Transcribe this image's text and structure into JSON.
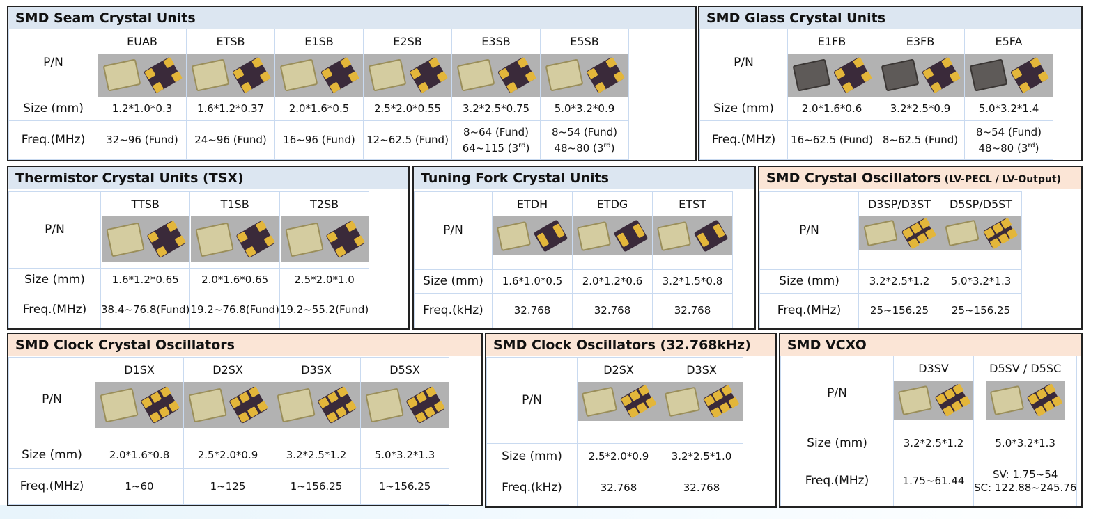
{
  "labels": {
    "pn": "P/N",
    "size": "Size (mm)",
    "freq_mhz": "Freq.(MHz)",
    "freq_khz": "Freq.(kHz)"
  },
  "seam": {
    "title": "SMD Seam Crystal Units",
    "cols": [
      {
        "pn": "EUAB",
        "size": "1.2*1.0*0.3",
        "freq": "32~96 (Fund)"
      },
      {
        "pn": "ETSB",
        "size": "1.6*1.2*0.37",
        "freq": "24~96 (Fund)"
      },
      {
        "pn": "E1SB",
        "size": "2.0*1.6*0.5",
        "freq": "16~96 (Fund)"
      },
      {
        "pn": "E2SB",
        "size": "2.5*2.0*0.55",
        "freq": "12~62.5 (Fund)"
      },
      {
        "pn": "E3SB",
        "size": "3.2*2.5*0.75",
        "freq": "8~64 (Fund)",
        "freq2": "64~115 (3",
        "sup": "rd",
        ")": ")"
      },
      {
        "pn": "E5SB",
        "size": "5.0*3.2*0.9",
        "freq": "8~54 (Fund)",
        "freq2": "48~80 (3",
        "sup": "rd"
      }
    ]
  },
  "glass": {
    "title": "SMD Glass Crystal Units",
    "cols": [
      {
        "pn": "E1FB",
        "size": "2.0*1.6*0.6",
        "freq": "16~62.5 (Fund)"
      },
      {
        "pn": "E3FB",
        "size": "3.2*2.5*0.9",
        "freq": "8~62.5 (Fund)"
      },
      {
        "pn": "E5FA",
        "size": "5.0*3.2*1.4",
        "freq": "8~54 (Fund)",
        "freq2": "48~80 (3",
        "sup": "rd"
      }
    ]
  },
  "tsx": {
    "title": "Thermistor Crystal Units (TSX)",
    "cols": [
      {
        "pn": "TTSB",
        "size": "1.6*1.2*0.65",
        "freq": "38.4~76.8(Fund)"
      },
      {
        "pn": "T1SB",
        "size": "2.0*1.6*0.65",
        "freq": "19.2~76.8(Fund)"
      },
      {
        "pn": "T2SB",
        "size": "2.5*2.0*1.0",
        "freq": "19.2~55.2(Fund)"
      }
    ]
  },
  "fork": {
    "title": "Tuning Fork Crystal Units",
    "cols": [
      {
        "pn": "ETDH",
        "size": "1.6*1.0*0.5",
        "freq": "32.768"
      },
      {
        "pn": "ETDG",
        "size": "2.0*1.2*0.6",
        "freq": "32.768"
      },
      {
        "pn": "ETST",
        "size": "3.2*1.5*0.8",
        "freq": "32.768"
      }
    ]
  },
  "xo": {
    "title": "SMD Crystal Oscillators",
    "title_sub": " (LV-PECL / LV-Output)",
    "cols": [
      {
        "pn": "D3SP/D3ST",
        "size": "3.2*2.5*1.2",
        "freq": "25~156.25"
      },
      {
        "pn": "D5SP/D5ST",
        "size": "5.0*3.2*1.3",
        "freq": "25~156.25"
      }
    ]
  },
  "clk": {
    "title": "SMD Clock Crystal Oscillators",
    "cols": [
      {
        "pn": "D1SX",
        "size": "2.0*1.6*0.8",
        "freq": "1~60"
      },
      {
        "pn": "D2SX",
        "size": "2.5*2.0*0.9",
        "freq": "1~125"
      },
      {
        "pn": "D3SX",
        "size": "3.2*2.5*1.2",
        "freq": "1~156.25"
      },
      {
        "pn": "D5SX",
        "size": "5.0*3.2*1.3",
        "freq": "1~156.25"
      }
    ]
  },
  "clk32": {
    "title": "SMD Clock Oscillators (32.768kHz)",
    "cols": [
      {
        "pn": "D2SX",
        "size": "2.5*2.0*0.9",
        "freq": "32.768"
      },
      {
        "pn": "D3SX",
        "size": "3.2*2.5*1.0",
        "freq": "32.768"
      }
    ]
  },
  "vcxo": {
    "title": "SMD VCXO",
    "cols": [
      {
        "pn": "D3SV",
        "size": "3.2*2.5*1.2",
        "freq": "1.75~61.44"
      },
      {
        "pn": "D5SV / D5SC",
        "size": "5.0*3.2*1.3",
        "freq": "SV: 1.75~54",
        "freq2": "SC: 122.88~245.76"
      }
    ]
  },
  "colors": {
    "blue_header": "#dce6f1",
    "peach_header": "#fbe5d6",
    "grid_line": "#c9daf0",
    "pad_gold": "#e3b63a"
  }
}
